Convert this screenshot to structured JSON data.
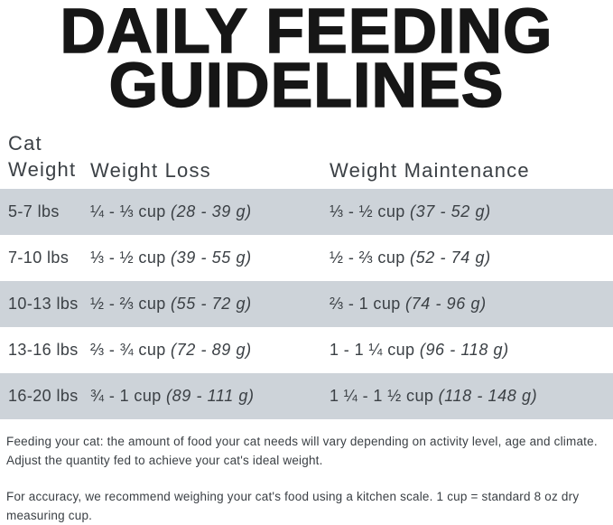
{
  "title": {
    "line1": "DAILY FEEDING",
    "line2": "GUIDELINES"
  },
  "table": {
    "headers": {
      "cat_weight_line1": "Cat",
      "cat_weight_line2": "Weight",
      "weight_loss": "Weight Loss",
      "weight_maintenance": "Weight Maintenance"
    },
    "rows": [
      {
        "weight": "5-7 lbs",
        "loss_cups": "¼ - ⅓ cup",
        "loss_grams": "(28 - 39 g)",
        "maint_cups": "⅓ - ½ cup",
        "maint_grams": "(37 - 52 g)"
      },
      {
        "weight": "7-10 lbs",
        "loss_cups": "⅓ - ½ cup",
        "loss_grams": "(39 - 55 g)",
        "maint_cups": "½ - ⅔ cup",
        "maint_grams": "(52 - 74 g)"
      },
      {
        "weight": "10-13 lbs",
        "loss_cups": "½ - ⅔ cup",
        "loss_grams": "(55 - 72 g)",
        "maint_cups": "⅔ - 1 cup",
        "maint_grams": "(74 - 96 g)"
      },
      {
        "weight": "13-16 lbs",
        "loss_cups": "⅔ - ¾ cup",
        "loss_grams": "(72 - 89 g)",
        "maint_cups": "1 - 1 ¼ cup",
        "maint_grams": "(96 - 118 g)"
      },
      {
        "weight": "16-20 lbs",
        "loss_cups": "¾ - 1 cup",
        "loss_grams": "(89 - 111 g)",
        "maint_cups": "1 ¼ - 1 ½ cup",
        "maint_grams": "(118 - 148 g)"
      }
    ]
  },
  "footer": {
    "para1": "Feeding your cat: the amount of food your cat needs will vary depending on activity level, age and climate. Adjust the quantity fed to achieve your cat's ideal weight.",
    "para2": "For accuracy, we recommend weighing your cat's food using a kitchen scale. 1 cup = standard 8 oz dry measuring cup."
  },
  "colors": {
    "row_alt": "#cdd3d9",
    "text": "#3b4045",
    "title": "#161616",
    "background": "#ffffff"
  }
}
